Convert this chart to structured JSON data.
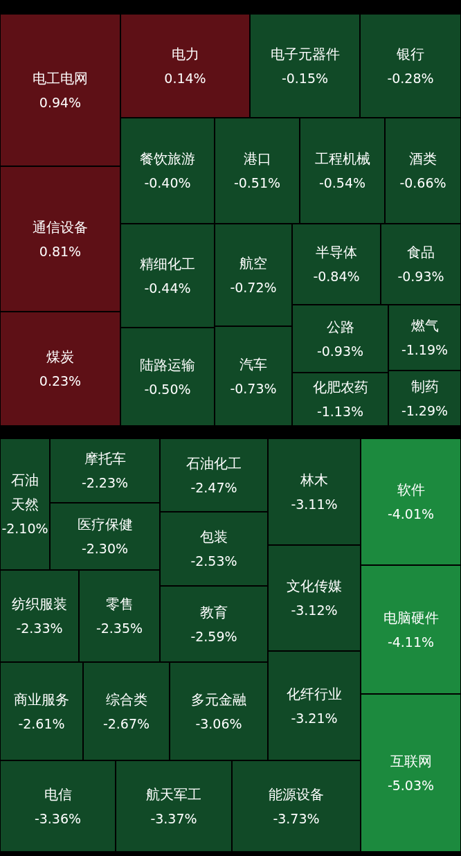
{
  "chart_data": {
    "type": "other",
    "categories": [
      "电工电网",
      "通信设备",
      "煤炭",
      "电力",
      "电子元器件",
      "银行",
      "餐饮旅游",
      "港口",
      "工程机械",
      "酒类",
      "精细化工",
      "航空",
      "半导体",
      "食品",
      "陆路运输",
      "汽车",
      "公路",
      "燃气",
      "化肥农药",
      "制药",
      "石油天然",
      "摩托车",
      "医疗保健",
      "石油化工",
      "包装",
      "林木",
      "文化传媒",
      "软件",
      "纺织服装",
      "零售",
      "教育",
      "电脑硬件",
      "商业服务",
      "综合类",
      "多元金融",
      "化纤行业",
      "互联网",
      "电信",
      "航天军工",
      "能源设备"
    ],
    "values": [
      0.94,
      0.81,
      0.23,
      0.14,
      -0.15,
      -0.28,
      -0.4,
      -0.51,
      -0.54,
      -0.66,
      -0.44,
      -0.72,
      -0.84,
      -0.93,
      -0.5,
      -0.73,
      -0.93,
      -1.19,
      -1.13,
      -1.29,
      -2.1,
      -2.23,
      -2.3,
      -2.47,
      -2.53,
      -3.11,
      -3.12,
      -4.01,
      -2.33,
      -2.35,
      -2.59,
      -4.11,
      -2.61,
      -2.67,
      -3.06,
      -3.21,
      -5.03,
      -3.36,
      -3.37,
      -3.73
    ],
    "value_labels": [
      "0.94%",
      "0.81%",
      "0.23%",
      "0.14%",
      "-0.15%",
      "-0.28%",
      "-0.40%",
      "-0.51%",
      "-0.54%",
      "-0.66%",
      "-0.44%",
      "-0.72%",
      "-0.84%",
      "-0.93%",
      "-0.50%",
      "-0.73%",
      "-0.93%",
      "-1.19%",
      "-1.13%",
      "-1.29%",
      "-2.10%",
      "-2.23%",
      "-2.30%",
      "-2.47%",
      "-2.53%",
      "-3.11%",
      "-3.12%",
      "-4.01%",
      "-2.33%",
      "-2.35%",
      "-2.59%",
      "-4.11%",
      "-2.61%",
      "-2.67%",
      "-3.06%",
      "-3.21%",
      "-5.03%",
      "-3.36%",
      "-3.37%",
      "-3.73%"
    ]
  }
}
